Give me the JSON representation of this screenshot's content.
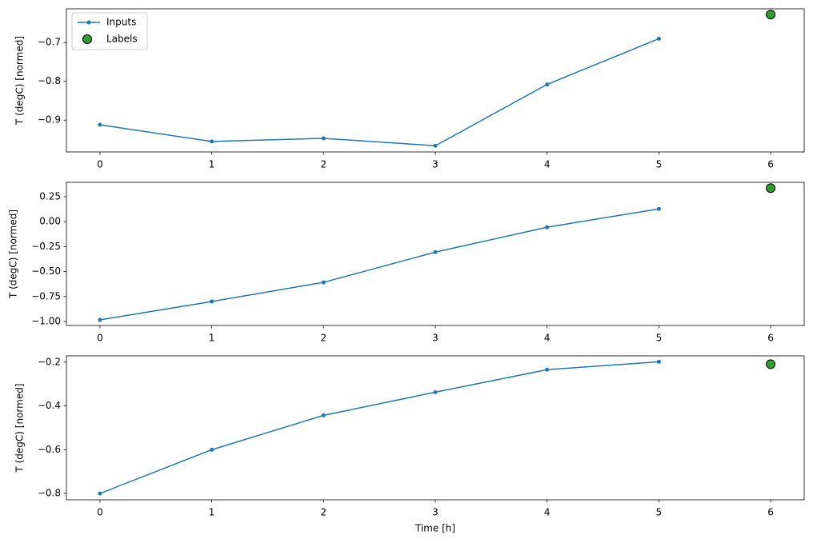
{
  "chart_data": [
    {
      "type": "line",
      "ylabel": "T (degC) [normed]",
      "legend": "upper left",
      "xlim": [
        -0.3,
        6.3
      ],
      "xticks": [
        0,
        1,
        2,
        3,
        4,
        5,
        6
      ],
      "ylim": [
        -0.982,
        -0.613
      ],
      "yticks": [
        {
          "value": -0.9,
          "label": "−0.9"
        },
        {
          "value": -0.8,
          "label": "−0.8"
        },
        {
          "value": -0.7,
          "label": "−0.7"
        }
      ],
      "series": [
        {
          "name": "Inputs",
          "color": "#1f77b4",
          "x": [
            0,
            1,
            2,
            3,
            4,
            5
          ],
          "values": [
            -0.912,
            -0.955,
            -0.947,
            -0.966,
            -0.808,
            -0.69
          ]
        },
        {
          "name": "Labels",
          "color": "#2ca02c",
          "x": [
            6
          ],
          "values": [
            -0.628
          ]
        }
      ]
    },
    {
      "type": "line",
      "ylabel": "T (degC) [normed]",
      "xlim": [
        -0.3,
        6.3
      ],
      "xticks": [
        0,
        1,
        2,
        3,
        4,
        5,
        6
      ],
      "ylim": [
        -1.04,
        0.394
      ],
      "yticks": [
        {
          "value": -1,
          "label": "−1.00"
        },
        {
          "value": -0.75,
          "label": "−0.75"
        },
        {
          "value": -0.5,
          "label": "−0.50"
        },
        {
          "value": -0.25,
          "label": "−0.25"
        },
        {
          "value": 0,
          "label": "0.00"
        },
        0.25
      ],
      "series": [
        {
          "color": "#1f77b4",
          "x": [
            0,
            1,
            2,
            3,
            4,
            5
          ],
          "values": [
            -0.984,
            -0.8,
            -0.608,
            -0.305,
            -0.056,
            0.128
          ]
        },
        {
          "color": "#2ca02c",
          "x": [
            6
          ],
          "values": [
            0.336
          ]
        }
      ]
    },
    {
      "type": "line",
      "ylabel": "T (degC) [normed]",
      "xlabel": "Time [h]",
      "xlim": [
        -0.3,
        6.3
      ],
      "xticks": [
        0,
        1,
        2,
        3,
        4,
        5,
        6
      ],
      "ylim": [
        -0.829,
        -0.171
      ],
      "yticks": [
        {
          "value": -0.8,
          "label": "−0.8"
        },
        {
          "value": -0.6,
          "label": "−0.6"
        },
        {
          "value": -0.4,
          "label": "−0.4"
        },
        {
          "value": -0.2,
          "label": "−0.2"
        }
      ],
      "series": [
        {
          "color": "#1f77b4",
          "x": [
            0,
            1,
            2,
            3,
            4,
            5
          ],
          "values": [
            -0.8,
            -0.6,
            -0.443,
            -0.337,
            -0.234,
            -0.198
          ]
        },
        {
          "color": "#2ca02c",
          "x": [
            6
          ],
          "values": [
            -0.209
          ]
        }
      ]
    }
  ]
}
